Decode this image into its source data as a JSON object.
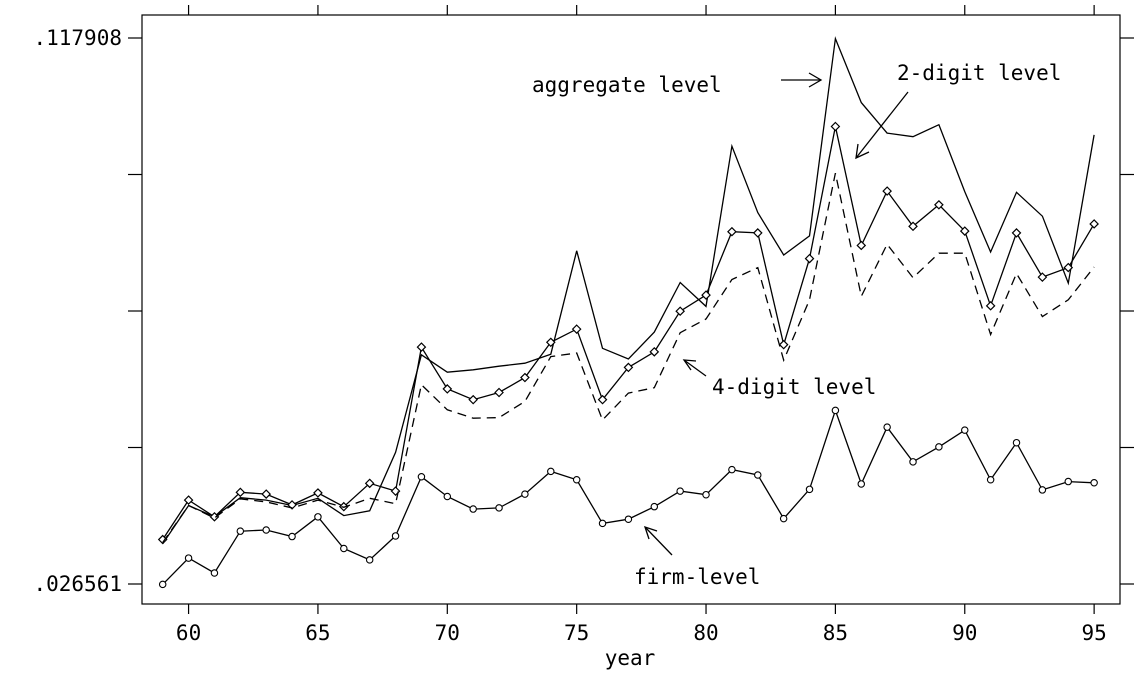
{
  "chart_data": {
    "type": "line",
    "title": "",
    "xlabel": "year",
    "ylabel": "",
    "xlim": [
      58.2,
      96.0
    ],
    "ylim": [
      0.026561,
      0.117908
    ],
    "grid": false,
    "x_ticks": [
      60,
      65,
      70,
      75,
      80,
      85,
      90,
      95
    ],
    "x_tick_labels": [
      "60",
      "65",
      "70",
      "75",
      "80",
      "85",
      "90",
      "95"
    ],
    "y_ticks": [
      0.026561,
      0.117908
    ],
    "y_tick_labels": [
      ".026561",
      ".117908"
    ],
    "y_minor_ticks": [
      0.049398,
      0.072234,
      0.095071
    ],
    "x": [
      59,
      60,
      61,
      62,
      63,
      64,
      65,
      66,
      67,
      68,
      69,
      70,
      71,
      72,
      73,
      74,
      75,
      76,
      77,
      78,
      79,
      80,
      81,
      82,
      83,
      84,
      85,
      86,
      87,
      88,
      89,
      90,
      91,
      92,
      93,
      94,
      95
    ],
    "series": [
      {
        "name": "aggregate level",
        "style": "solid",
        "marker": "none",
        "values": [
          0.0333,
          0.0397,
          0.0378,
          0.041,
          0.0406,
          0.0397,
          0.0409,
          0.038,
          0.0388,
          0.0486,
          0.0649,
          0.062,
          0.0624,
          0.063,
          0.0635,
          0.065,
          0.0823,
          0.066,
          0.0642,
          0.0687,
          0.077,
          0.073,
          0.0998,
          0.0887,
          0.0816,
          0.0848,
          0.1178,
          0.1071,
          0.102,
          0.1014,
          0.1034,
          0.0922,
          0.0821,
          0.0921,
          0.0881,
          0.0769,
          0.1017
        ]
      },
      {
        "name": "2-digit level",
        "style": "solid",
        "marker": "diamond",
        "values": [
          0.034,
          0.0406,
          0.0378,
          0.0419,
          0.0416,
          0.0398,
          0.0418,
          0.0395,
          0.0434,
          0.0421,
          0.0662,
          0.0592,
          0.0574,
          0.0586,
          0.0611,
          0.067,
          0.0692,
          0.0574,
          0.0628,
          0.0654,
          0.0722,
          0.0749,
          0.0855,
          0.0853,
          0.0666,
          0.081,
          0.1031,
          0.0832,
          0.0923,
          0.0864,
          0.09,
          0.0856,
          0.0731,
          0.0853,
          0.0779,
          0.0795,
          0.0868
        ]
      },
      {
        "name": "4-digit level",
        "style": "dashed",
        "marker": "none",
        "values": [
          0.0335,
          0.0397,
          0.0376,
          0.0408,
          0.0403,
          0.0393,
          0.0406,
          0.0394,
          0.0409,
          0.04,
          0.0599,
          0.0557,
          0.0543,
          0.0544,
          0.0571,
          0.0646,
          0.0652,
          0.054,
          0.0585,
          0.0594,
          0.0686,
          0.0709,
          0.0775,
          0.0795,
          0.064,
          0.0741,
          0.0953,
          0.0747,
          0.0834,
          0.0778,
          0.0819,
          0.0819,
          0.0683,
          0.0785,
          0.0713,
          0.0741,
          0.0796
        ]
      },
      {
        "name": "firm-level",
        "style": "solid",
        "marker": "circle",
        "values": [
          0.0265,
          0.0309,
          0.0284,
          0.0354,
          0.0356,
          0.0345,
          0.0378,
          0.0325,
          0.0306,
          0.0346,
          0.0445,
          0.0412,
          0.0391,
          0.0393,
          0.0416,
          0.0454,
          0.044,
          0.0367,
          0.0374,
          0.0395,
          0.0421,
          0.0415,
          0.0457,
          0.0448,
          0.0375,
          0.0424,
          0.0556,
          0.0433,
          0.0528,
          0.047,
          0.0495,
          0.0523,
          0.044,
          0.0502,
          0.0423,
          0.0437,
          0.0435
        ]
      }
    ],
    "annotations": [
      "aggregate level",
      "2-digit level",
      "4-digit level",
      "firm-level"
    ]
  }
}
